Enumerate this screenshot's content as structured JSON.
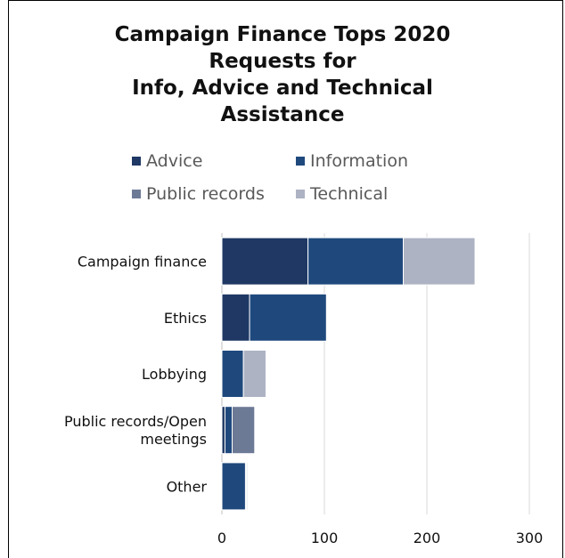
{
  "chart_data": {
    "type": "bar",
    "orientation": "horizontal",
    "stacked": true,
    "title": "Campaign Finance Tops 2020 Requests for Info, Advice and Technical Assistance",
    "title_lines": [
      "Campaign Finance Tops 2020",
      "Requests for",
      "Info, Advice and Technical",
      "Assistance"
    ],
    "categories": [
      "Campaign finance",
      "Ethics",
      "Lobbying",
      "Public records/Open meetings",
      "Other"
    ],
    "category_lines": [
      [
        "Campaign finance"
      ],
      [
        "Ethics"
      ],
      [
        "Lobbying"
      ],
      [
        "Public records/Open",
        "meetings"
      ],
      [
        "Other"
      ]
    ],
    "series": [
      {
        "name": "Advice",
        "color": "#1f3864",
        "values": [
          84,
          27,
          0,
          3,
          0
        ]
      },
      {
        "name": "Information",
        "color": "#1f497d",
        "values": [
          93,
          75,
          21,
          7,
          23
        ]
      },
      {
        "name": "Public records",
        "color": "#6d7a96",
        "values": [
          0,
          0,
          0,
          22,
          1
        ]
      },
      {
        "name": "Technical",
        "color": "#adb3c3",
        "values": [
          70,
          0,
          22,
          0,
          1
        ]
      }
    ],
    "x_ticks": [
      0,
      100,
      200,
      300
    ],
    "xlim": [
      0,
      300
    ],
    "grid": true,
    "legend_position": "top"
  }
}
